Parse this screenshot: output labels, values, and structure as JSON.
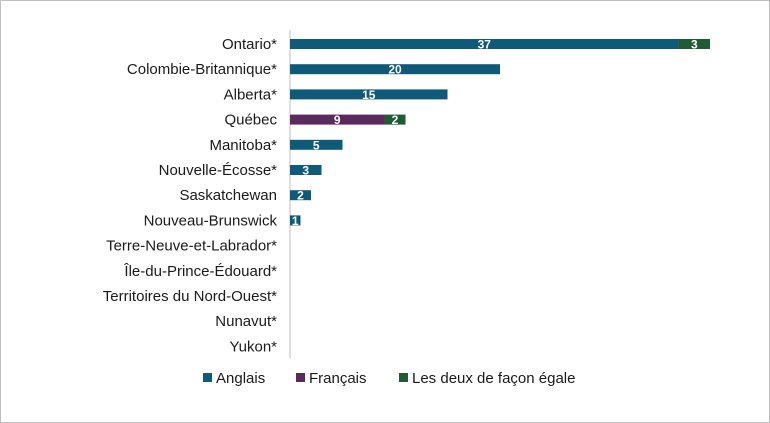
{
  "chart_data": {
    "type": "bar",
    "orientation": "horizontal",
    "stacked": true,
    "categories": [
      "Ontario*",
      "Colombie-Britannique*",
      "Alberta*",
      "Québec",
      "Manitoba*",
      "Nouvelle-Écosse*",
      "Saskatchewan",
      "Nouveau-Brunswick",
      "Terre-Neuve-et-Labrador*",
      "Île-du-Prince-Édouard*",
      "Territoires du Nord-Ouest*",
      "Nunavut*",
      "Yukon*"
    ],
    "series": [
      {
        "name": "Anglais",
        "color": "#0e5a78",
        "values": [
          37,
          20,
          15,
          0,
          5,
          3,
          2,
          1,
          0,
          0,
          0,
          0,
          0
        ]
      },
      {
        "name": "Français",
        "color": "#5a2a5e",
        "values": [
          0,
          0,
          0,
          9,
          0,
          0,
          0,
          0,
          0,
          0,
          0,
          0,
          0
        ]
      },
      {
        "name": "Les deux de façon égale",
        "color": "#1f5b33",
        "values": [
          3,
          0,
          0,
          2,
          0,
          0,
          0,
          0,
          0,
          0,
          0,
          0,
          0
        ]
      }
    ],
    "xlim": [
      0,
      40
    ],
    "grid": false,
    "legend_position": "bottom",
    "title": "",
    "xlabel": "",
    "ylabel": ""
  }
}
